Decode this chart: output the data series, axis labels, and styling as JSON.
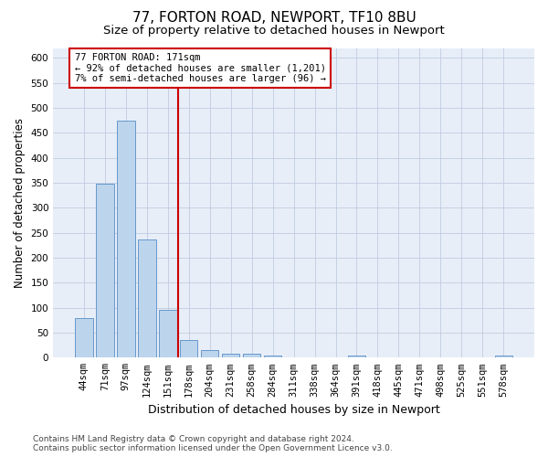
{
  "title": "77, FORTON ROAD, NEWPORT, TF10 8BU",
  "subtitle": "Size of property relative to detached houses in Newport",
  "xlabel": "Distribution of detached houses by size in Newport",
  "ylabel": "Number of detached properties",
  "categories": [
    "44sqm",
    "71sqm",
    "97sqm",
    "124sqm",
    "151sqm",
    "178sqm",
    "204sqm",
    "231sqm",
    "258sqm",
    "284sqm",
    "311sqm",
    "338sqm",
    "364sqm",
    "391sqm",
    "418sqm",
    "445sqm",
    "471sqm",
    "498sqm",
    "525sqm",
    "551sqm",
    "578sqm"
  ],
  "values": [
    80,
    348,
    474,
    236,
    96,
    36,
    16,
    8,
    8,
    5,
    0,
    0,
    0,
    5,
    0,
    0,
    0,
    0,
    0,
    0,
    5
  ],
  "bar_color": "#bcd4ec",
  "bar_edge_color": "#6699cc",
  "reference_line_label": "77 FORTON ROAD: 171sqm",
  "annotation_line1": "← 92% of detached houses are smaller (1,201)",
  "annotation_line2": "7% of semi-detached houses are larger (96) →",
  "annotation_box_color": "#ffffff",
  "annotation_box_edge_color": "#cc0000",
  "vline_color": "#cc0000",
  "vline_x": 4.5,
  "ylim_max": 620,
  "yticks": [
    0,
    50,
    100,
    150,
    200,
    250,
    300,
    350,
    400,
    450,
    500,
    550,
    600
  ],
  "bg_color": "#e8eef8",
  "grid_color": "#c0cce0",
  "footer_line1": "Contains HM Land Registry data © Crown copyright and database right 2024.",
  "footer_line2": "Contains public sector information licensed under the Open Government Licence v3.0.",
  "title_fontsize": 11,
  "subtitle_fontsize": 9.5,
  "xlabel_fontsize": 9,
  "ylabel_fontsize": 8.5,
  "tick_fontsize": 7.5,
  "annot_fontsize": 7.5,
  "footer_fontsize": 6.5
}
